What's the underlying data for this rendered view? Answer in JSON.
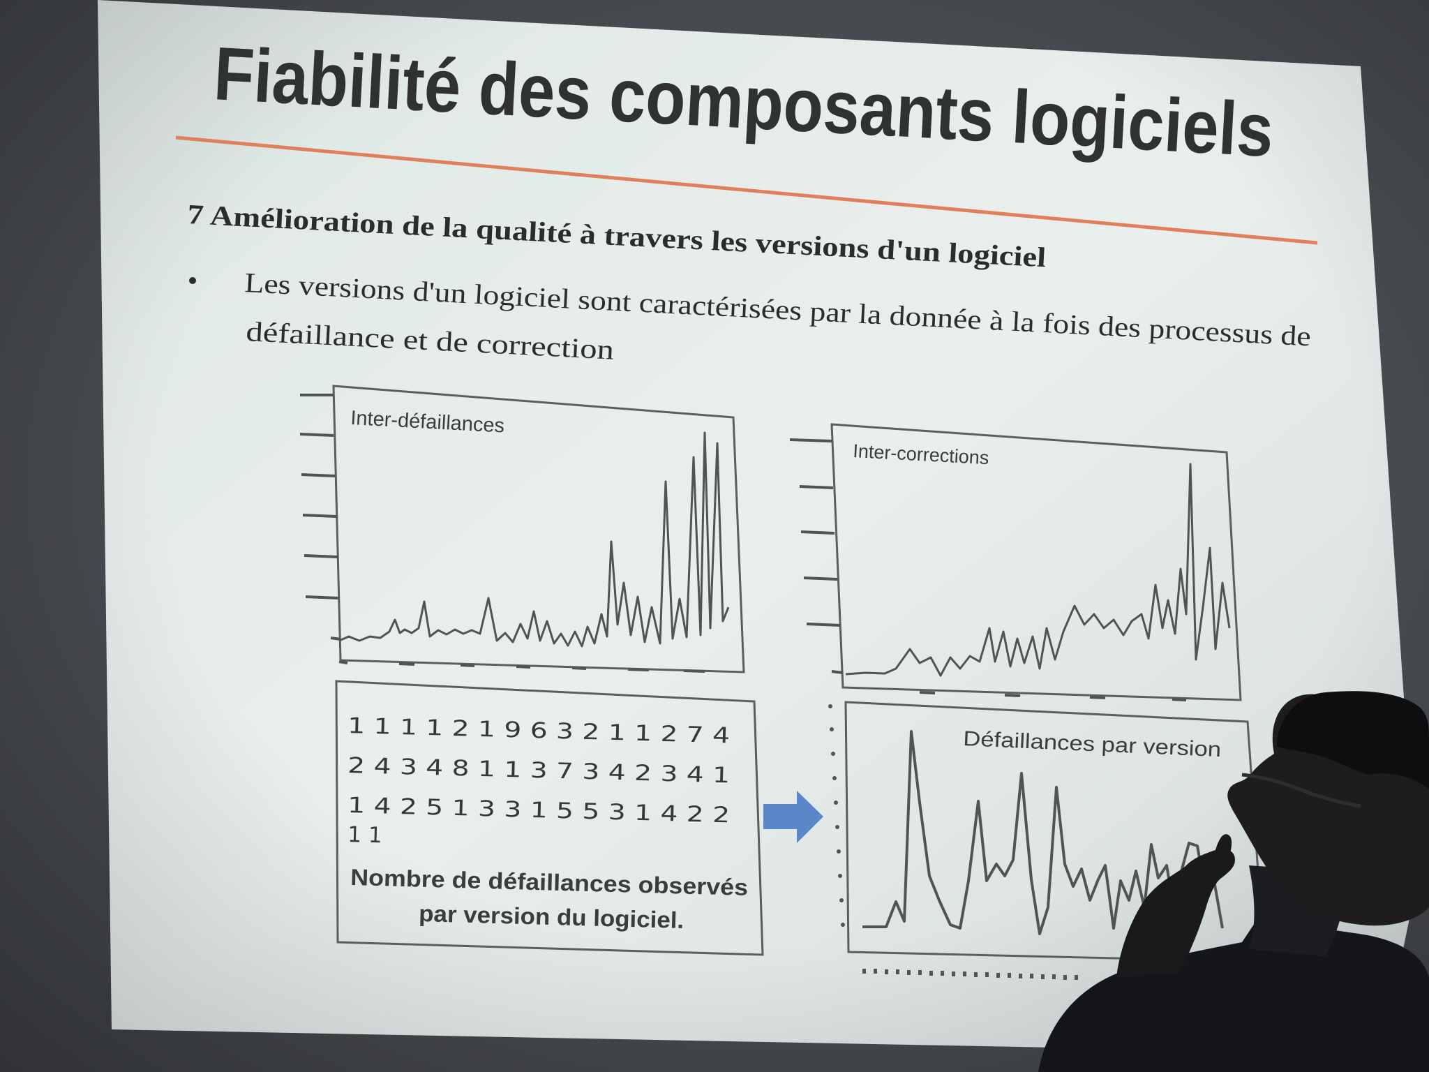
{
  "slide": {
    "title": "Fiabilité des composants logiciels",
    "section_heading": "7 Amélioration de la qualité à travers les versions d'un logiciel",
    "bullet_line1": "Les versions d'un logiciel sont caractérisées par la donnée à la fois des processus de",
    "bullet_line2": "défaillance et de correction",
    "accent_color": "#e0805a",
    "arrow_color": "#5b86c8"
  },
  "chart_inter_defaillances": {
    "label": "Inter-défaillances"
  },
  "chart_inter_corrections": {
    "label": "Inter-corrections"
  },
  "chart_defaillances_par_version": {
    "label": "Défaillances par version"
  },
  "failure_counts": {
    "row1": "1 1 1 1 2 1 9 6 3 2 1 1 2 7 4",
    "row2": "2 4 3 4 8 1 1 3 7 3 4 2 3 4 1",
    "row3": "1 4 2 5 1 3 3 1 5 5 3 1 4 2 2",
    "row4": "1 1",
    "caption_line1": "Nombre de défaillances observés",
    "caption_line2": "par version du logiciel."
  }
}
